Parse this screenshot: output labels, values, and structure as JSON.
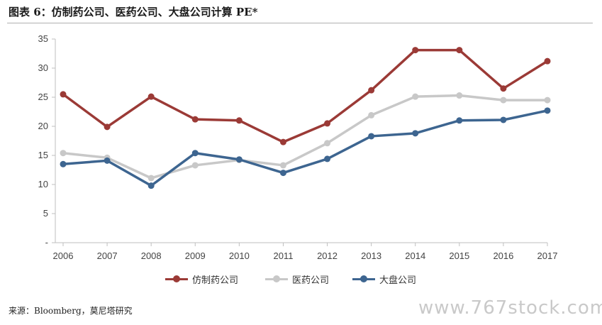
{
  "title": "图表 6：仿制药公司、医药公司、大盘公司计算 PE*",
  "source": "来源：Bloomberg，莫尼塔研究",
  "watermark": "www.767stock.com",
  "chart_data": {
    "type": "line",
    "title": "",
    "xlabel": "",
    "ylabel": "",
    "x": [
      "2006",
      "2007",
      "2008",
      "2009",
      "2010",
      "2011",
      "2012",
      "2013",
      "2014",
      "2015",
      "2016",
      "2017"
    ],
    "ylim": [
      0,
      35
    ],
    "yticks": [
      {
        "value": 0,
        "label": "-"
      },
      {
        "value": 5,
        "label": "5"
      },
      {
        "value": 10,
        "label": "10"
      },
      {
        "value": 15,
        "label": "15"
      },
      {
        "value": 20,
        "label": "20"
      },
      {
        "value": 25,
        "label": "25"
      },
      {
        "value": 30,
        "label": "30"
      },
      {
        "value": 35,
        "label": "35"
      }
    ],
    "grid": false,
    "legend_position": "bottom",
    "series": [
      {
        "name": "仿制药公司",
        "color": "#9b3a36",
        "values": [
          25.5,
          19.9,
          25.1,
          21.2,
          21.0,
          17.3,
          20.5,
          26.2,
          33.1,
          33.1,
          26.5,
          31.2
        ]
      },
      {
        "name": "医药公司",
        "color": "#c8c8c8",
        "values": [
          15.4,
          14.6,
          11.1,
          13.3,
          14.2,
          13.3,
          17.1,
          21.9,
          25.1,
          25.3,
          24.5,
          24.5
        ]
      },
      {
        "name": "大盘公司",
        "color": "#3d6590",
        "values": [
          13.5,
          14.1,
          9.8,
          15.4,
          14.3,
          12.0,
          14.4,
          18.3,
          18.8,
          21.0,
          21.1,
          22.7
        ]
      }
    ]
  }
}
